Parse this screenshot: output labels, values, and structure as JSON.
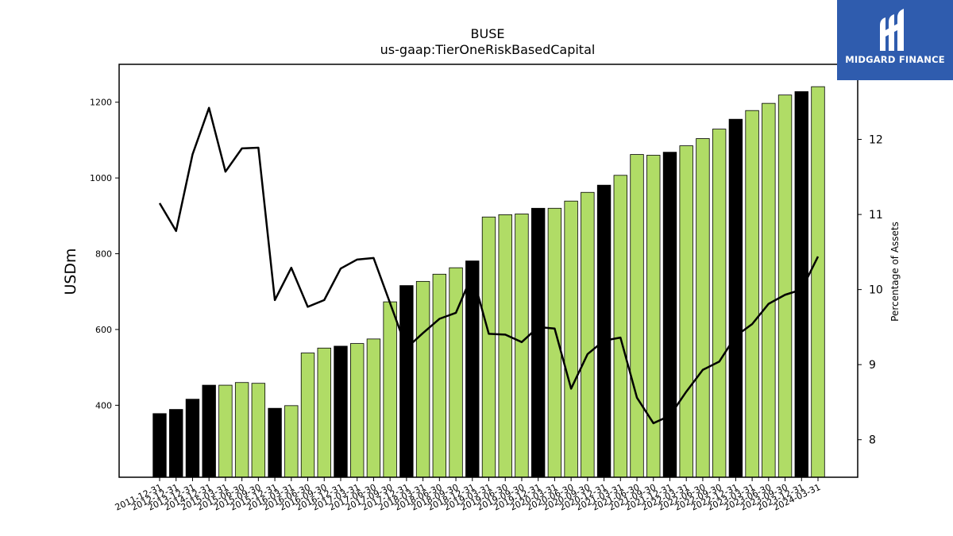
{
  "logo": {
    "text": "MIDGARD FINANCE",
    "icon": "midgard-m-logo-icon",
    "background": "#2f5cae"
  },
  "chart_data": {
    "type": "bar",
    "title": "BUSE",
    "subtitle": "us-gaap:TierOneRiskBasedCapital",
    "ylabel": "USDm",
    "y2label": "Percentage of Assets",
    "ylim": [
      210,
      1300
    ],
    "y2lim": [
      7.5,
      13.0
    ],
    "yticks": [
      400,
      600,
      800,
      1000,
      1200
    ],
    "y2ticks": [
      8,
      9,
      10,
      11,
      12
    ],
    "grid": false,
    "colors": {
      "annual_bar": "#000000",
      "quarter_bar": "#b0dc66",
      "line": "#000000"
    },
    "categories": [
      "2011-12-31",
      "2012-12-31",
      "2013-12-31",
      "2014-12-31",
      "2015-03-31",
      "2015-06-30",
      "2015-09-30",
      "2015-12-31",
      "2016-03-31",
      "2016-06-30",
      "2016-09-30",
      "2016-12-31",
      "2017-03-31",
      "2017-06-30",
      "2017-09-30",
      "2017-12-31",
      "2018-03-31",
      "2018-06-30",
      "2018-09-30",
      "2018-12-31",
      "2019-03-31",
      "2019-06-30",
      "2019-09-30",
      "2019-12-31",
      "2020-03-31",
      "2020-06-30",
      "2020-09-30",
      "2020-12-31",
      "2021-03-31",
      "2021-06-30",
      "2021-09-30",
      "2021-12-31",
      "2022-03-31",
      "2022-06-30",
      "2022-09-30",
      "2022-12-31",
      "2023-03-31",
      "2023-06-30",
      "2023-09-30",
      "2023-12-31",
      "2024-03-31"
    ],
    "series": [
      {
        "type": "bar",
        "values": [
          378,
          389,
          416,
          453,
          453,
          460,
          458,
          392,
          399,
          538,
          551,
          556,
          563,
          575,
          673,
          716,
          727,
          746,
          763,
          781,
          897,
          903,
          905,
          920,
          920,
          939,
          962,
          981,
          1007,
          1062,
          1060,
          1068,
          1085,
          1104,
          1129,
          1155,
          1178,
          1197,
          1219,
          1228,
          1241
        ],
        "annual": [
          true,
          true,
          true,
          true,
          false,
          false,
          false,
          true,
          false,
          false,
          false,
          true,
          false,
          false,
          false,
          true,
          false,
          false,
          false,
          true,
          false,
          false,
          false,
          true,
          false,
          false,
          false,
          true,
          false,
          false,
          false,
          true,
          false,
          false,
          false,
          true,
          false,
          false,
          false,
          true,
          false
        ]
      },
      {
        "type": "line",
        "axis": "right",
        "values": [
          11.15,
          10.78,
          11.8,
          12.42,
          11.57,
          11.88,
          11.89,
          9.86,
          10.29,
          9.77,
          9.86,
          10.28,
          10.4,
          10.42,
          9.82,
          9.22,
          9.42,
          9.61,
          9.69,
          10.2,
          9.41,
          9.4,
          9.3,
          9.5,
          9.48,
          8.68,
          9.14,
          9.32,
          9.36,
          8.56,
          8.22,
          8.32,
          8.64,
          8.93,
          9.04,
          9.38,
          9.54,
          9.81,
          9.93,
          10.0,
          10.44
        ]
      }
    ]
  }
}
